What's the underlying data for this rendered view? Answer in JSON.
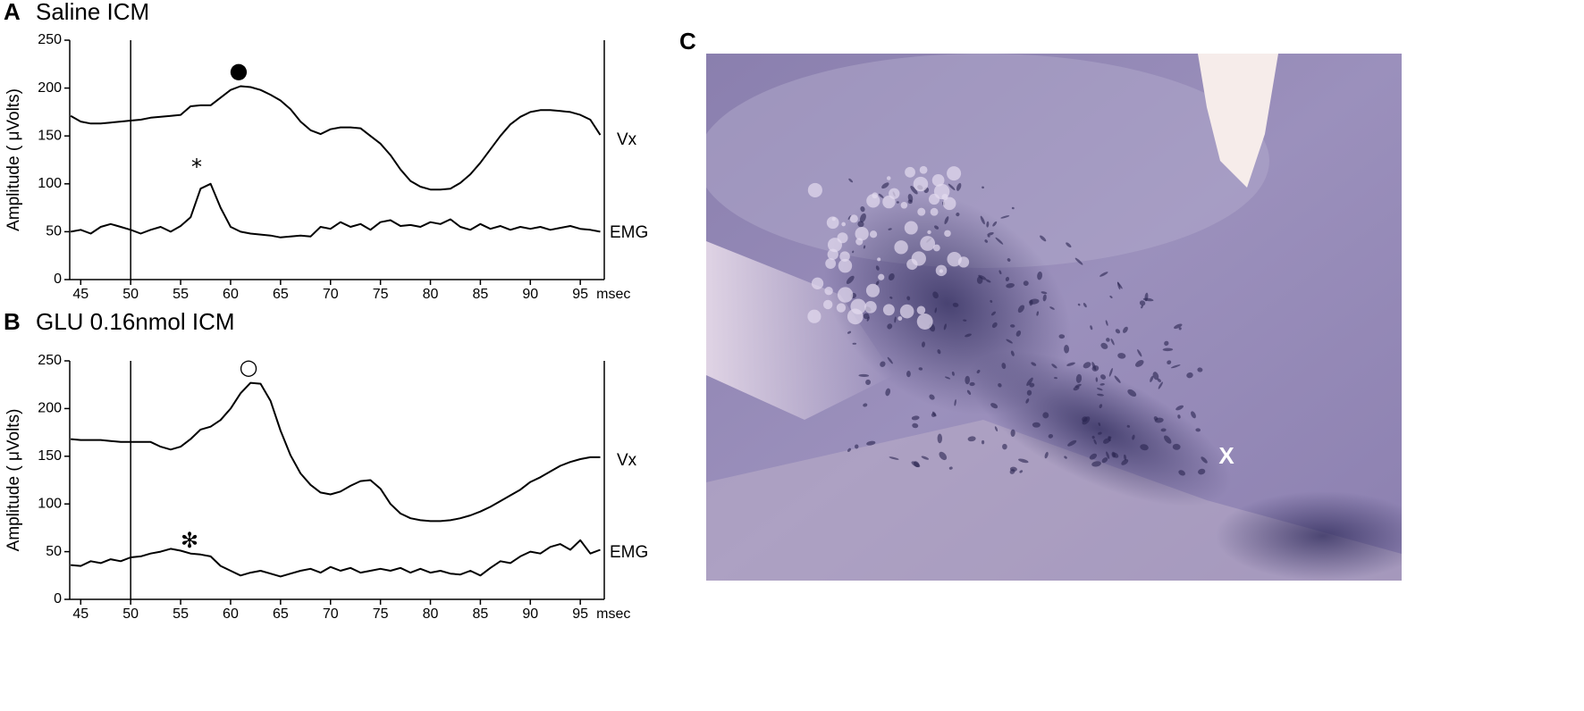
{
  "chart_data": [
    {
      "type": "line",
      "panel": "A",
      "title": "Saline ICM",
      "y_label": "Amplitude ( μVolts)",
      "x_unit": "msec",
      "x": [
        44,
        45,
        46,
        47,
        48,
        49,
        50,
        51,
        52,
        53,
        54,
        55,
        56,
        57,
        58,
        59,
        60,
        61,
        62,
        63,
        64,
        65,
        66,
        67,
        68,
        69,
        70,
        71,
        72,
        73,
        74,
        75,
        76,
        77,
        78,
        79,
        80,
        81,
        82,
        83,
        84,
        85,
        86,
        87,
        88,
        89,
        90,
        91,
        92,
        93,
        94,
        95,
        96,
        97
      ],
      "series": [
        {
          "name": "Vx",
          "color": "#000000",
          "values": [
            171,
            165,
            163,
            163,
            164,
            165,
            166,
            167,
            169,
            170,
            171,
            172,
            181,
            182,
            182,
            190,
            198,
            202,
            201,
            198,
            193,
            187,
            178,
            165,
            156,
            152,
            157,
            159,
            159,
            158,
            150,
            142,
            130,
            115,
            103,
            97,
            94,
            94,
            95,
            101,
            110,
            122,
            136,
            150,
            162,
            170,
            175,
            177,
            177,
            176,
            175,
            172,
            167,
            151
          ]
        },
        {
          "name": "EMG",
          "color": "#000000",
          "values": [
            50,
            52,
            48,
            55,
            58,
            55,
            52,
            48,
            52,
            55,
            50,
            56,
            65,
            95,
            100,
            75,
            55,
            50,
            48,
            47,
            46,
            44,
            45,
            46,
            45,
            55,
            53,
            60,
            55,
            58,
            52,
            60,
            62,
            56,
            57,
            55,
            60,
            58,
            63,
            55,
            52,
            58,
            53,
            56,
            52,
            55,
            53,
            55,
            52,
            54,
            56,
            53,
            52,
            50
          ]
        }
      ],
      "stimulus_x": 50,
      "annotations": [
        "●",
        "*"
      ],
      "xlim": [
        43.9,
        97.4
      ],
      "xticks": [
        45,
        50,
        55,
        60,
        65,
        70,
        75,
        80,
        85,
        90,
        95
      ],
      "ylim": [
        0,
        250
      ],
      "yticks": [
        0,
        50,
        100,
        150,
        200,
        250
      ],
      "grid": false
    },
    {
      "type": "line",
      "panel": "B",
      "title": "GLU 0.16nmol ICM",
      "y_label": "Amplitude ( μVolts)",
      "x_unit": "msec",
      "x": [
        44,
        45,
        46,
        47,
        48,
        49,
        50,
        51,
        52,
        53,
        54,
        55,
        56,
        57,
        58,
        59,
        60,
        61,
        62,
        63,
        64,
        65,
        66,
        67,
        68,
        69,
        70,
        71,
        72,
        73,
        74,
        75,
        76,
        77,
        78,
        79,
        80,
        81,
        82,
        83,
        84,
        85,
        86,
        87,
        88,
        89,
        90,
        91,
        92,
        93,
        94,
        95,
        96,
        97
      ],
      "series": [
        {
          "name": "Vx",
          "color": "#000000",
          "values": [
            168,
            167,
            167,
            167,
            166,
            165,
            165,
            165,
            165,
            160,
            157,
            160,
            168,
            178,
            181,
            188,
            200,
            216,
            227,
            226,
            208,
            177,
            151,
            132,
            120,
            112,
            110,
            113,
            119,
            124,
            125,
            116,
            100,
            90,
            85,
            83,
            82,
            82,
            83,
            85,
            88,
            92,
            97,
            103,
            109,
            115,
            123,
            128,
            134,
            140,
            144,
            147,
            149,
            149
          ]
        },
        {
          "name": "EMG",
          "color": "#000000",
          "values": [
            36,
            35,
            40,
            38,
            42,
            40,
            44,
            45,
            48,
            50,
            53,
            51,
            48,
            47,
            45,
            35,
            30,
            25,
            28,
            30,
            27,
            24,
            27,
            30,
            32,
            28,
            34,
            30,
            33,
            28,
            30,
            32,
            30,
            33,
            28,
            32,
            28,
            30,
            27,
            26,
            30,
            25,
            33,
            40,
            38,
            45,
            50,
            48,
            55,
            58,
            52,
            62,
            48,
            52
          ]
        }
      ],
      "stimulus_x": 50,
      "annotations": [
        "○",
        "✻"
      ],
      "xlim": [
        43.9,
        97.4
      ],
      "xticks": [
        45,
        50,
        55,
        60,
        65,
        70,
        75,
        80,
        85,
        90,
        95
      ],
      "ylim": [
        0,
        250
      ],
      "yticks": [
        0,
        50,
        100,
        150,
        200,
        250
      ],
      "grid": false
    }
  ],
  "micrograph": {
    "panel": "C",
    "annotation": "X"
  }
}
